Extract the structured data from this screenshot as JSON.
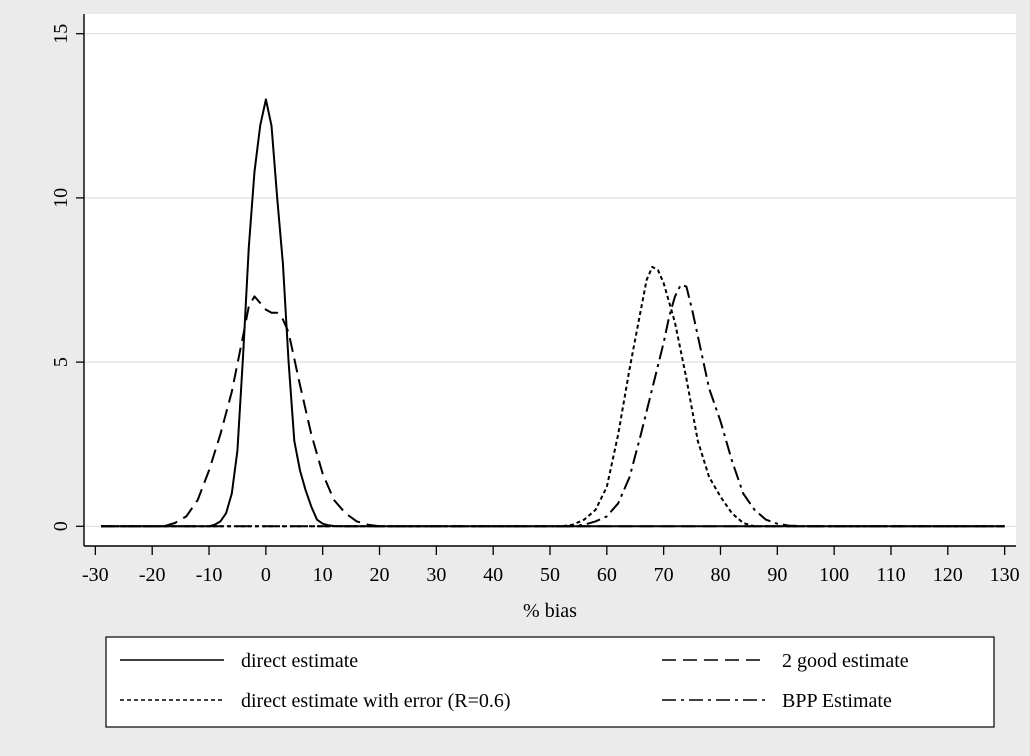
{
  "chart_data": {
    "type": "line",
    "xlabel": "% bias",
    "ylabel": "",
    "xlim": [
      -32,
      132
    ],
    "ylim": [
      -0.6,
      15.6
    ],
    "xticks": [
      -30,
      -20,
      -10,
      0,
      10,
      20,
      30,
      40,
      50,
      60,
      70,
      80,
      90,
      100,
      110,
      120,
      130
    ],
    "yticks": [
      0,
      5,
      10,
      15
    ],
    "grid": true,
    "legend_position": "bottom",
    "series": [
      {
        "name": "direct estimate",
        "dash": "solid",
        "x": [
          -29,
          -10,
          -9,
          -8,
          -7,
          -6,
          -5,
          -4,
          -3,
          -2,
          -1,
          0,
          1,
          2,
          3,
          4,
          5,
          6,
          7,
          8,
          9,
          10,
          11,
          12,
          14,
          130
        ],
        "y": [
          0,
          0,
          0.05,
          0.15,
          0.4,
          1.0,
          2.3,
          5.2,
          8.5,
          10.8,
          12.2,
          13.0,
          12.2,
          10.0,
          8.0,
          5.0,
          2.6,
          1.7,
          1.1,
          0.6,
          0.2,
          0.08,
          0.03,
          0.01,
          0,
          0
        ]
      },
      {
        "name": "2 good estimate",
        "dash": "long-dash",
        "x": [
          -29,
          -18,
          -16,
          -14,
          -12,
          -10,
          -8,
          -6,
          -4,
          -3,
          -2,
          -1,
          0,
          1,
          2,
          3,
          4,
          6,
          8,
          10,
          12,
          14,
          16,
          18,
          20,
          130
        ],
        "y": [
          0,
          0,
          0.1,
          0.3,
          0.8,
          1.7,
          2.8,
          4.1,
          5.8,
          6.7,
          7.0,
          6.8,
          6.6,
          6.5,
          6.5,
          6.3,
          5.9,
          4.3,
          2.8,
          1.6,
          0.8,
          0.4,
          0.15,
          0.05,
          0,
          0
        ]
      },
      {
        "name": "direct estimate with error (R=0.6)",
        "dash": "short-dash",
        "x": [
          -29,
          52,
          54,
          56,
          58,
          60,
          62,
          64,
          66,
          67,
          68,
          69,
          70,
          72,
          74,
          76,
          78,
          80,
          82,
          84,
          86,
          130
        ],
        "y": [
          0,
          0,
          0.05,
          0.2,
          0.5,
          1.2,
          2.8,
          4.8,
          6.6,
          7.5,
          7.9,
          7.8,
          7.4,
          6.2,
          4.5,
          2.6,
          1.5,
          0.9,
          0.4,
          0.1,
          0,
          0
        ]
      },
      {
        "name": "BPP Estimate",
        "dash": "dash-dot",
        "x": [
          -29,
          54,
          56,
          58,
          60,
          62,
          64,
          66,
          68,
          70,
          71,
          72,
          73,
          74,
          75,
          76,
          78,
          80,
          82,
          84,
          86,
          88,
          90,
          92,
          95,
          130
        ],
        "y": [
          0,
          0,
          0.05,
          0.15,
          0.3,
          0.7,
          1.5,
          2.8,
          4.2,
          5.6,
          6.4,
          7.0,
          7.35,
          7.3,
          6.6,
          5.8,
          4.2,
          3.2,
          2.0,
          1.0,
          0.5,
          0.2,
          0.08,
          0.02,
          0,
          0
        ]
      }
    ]
  }
}
